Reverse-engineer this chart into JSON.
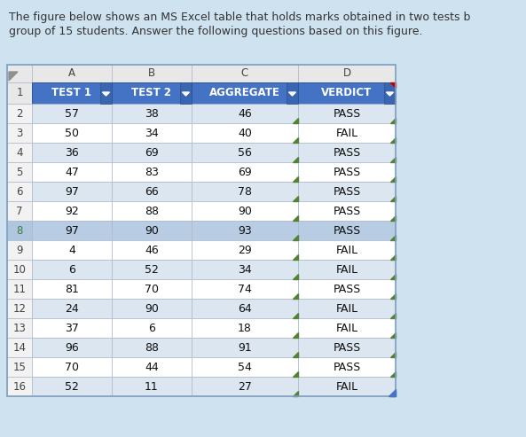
{
  "title_line1": "The figure below shows an MS Excel table that holds marks obtained in two tests b",
  "title_line2": "group of 15 students. Answer the following questions based on this figure.",
  "background_color": "#cfe2f0",
  "col_letters": [
    "A",
    "B",
    "C",
    "D"
  ],
  "header_labels": [
    "TEST 1",
    "TEST 2",
    "AGGREGATE",
    "VERDICT"
  ],
  "header_bg": "#4472c4",
  "header_text_color": "#ffffff",
  "data_rows": [
    [
      57,
      38,
      46,
      "PASS"
    ],
    [
      50,
      34,
      40,
      "FAIL"
    ],
    [
      36,
      69,
      56,
      "PASS"
    ],
    [
      47,
      83,
      69,
      "PASS"
    ],
    [
      97,
      66,
      78,
      "PASS"
    ],
    [
      92,
      88,
      90,
      "PASS"
    ],
    [
      97,
      90,
      93,
      "PASS"
    ],
    [
      4,
      46,
      29,
      "FAIL"
    ],
    [
      6,
      52,
      34,
      "FAIL"
    ],
    [
      81,
      70,
      74,
      "PASS"
    ],
    [
      24,
      90,
      64,
      "FAIL"
    ],
    [
      37,
      6,
      18,
      "FAIL"
    ],
    [
      96,
      88,
      91,
      "PASS"
    ],
    [
      70,
      44,
      54,
      "PASS"
    ],
    [
      52,
      11,
      27,
      "FAIL"
    ]
  ],
  "row8_num_color": "#3e7a3e",
  "row8_bg": "#b8cce4",
  "row_odd_bg": "#dce6f1",
  "row_even_bg": "#ffffff",
  "row_num_bg": "#f2f2f2",
  "row_num_color": "#444444",
  "cell_text_color": "#111111",
  "border_color": "#adb9ca",
  "green_tri_color": "#548235",
  "red_corner_color": "#c00000",
  "title_color": "#333333",
  "title_fontsize": 9.0,
  "header_fontsize": 8.5,
  "data_fontsize": 9.0,
  "letter_fontsize": 8.5,
  "rownum_fontsize": 8.5
}
